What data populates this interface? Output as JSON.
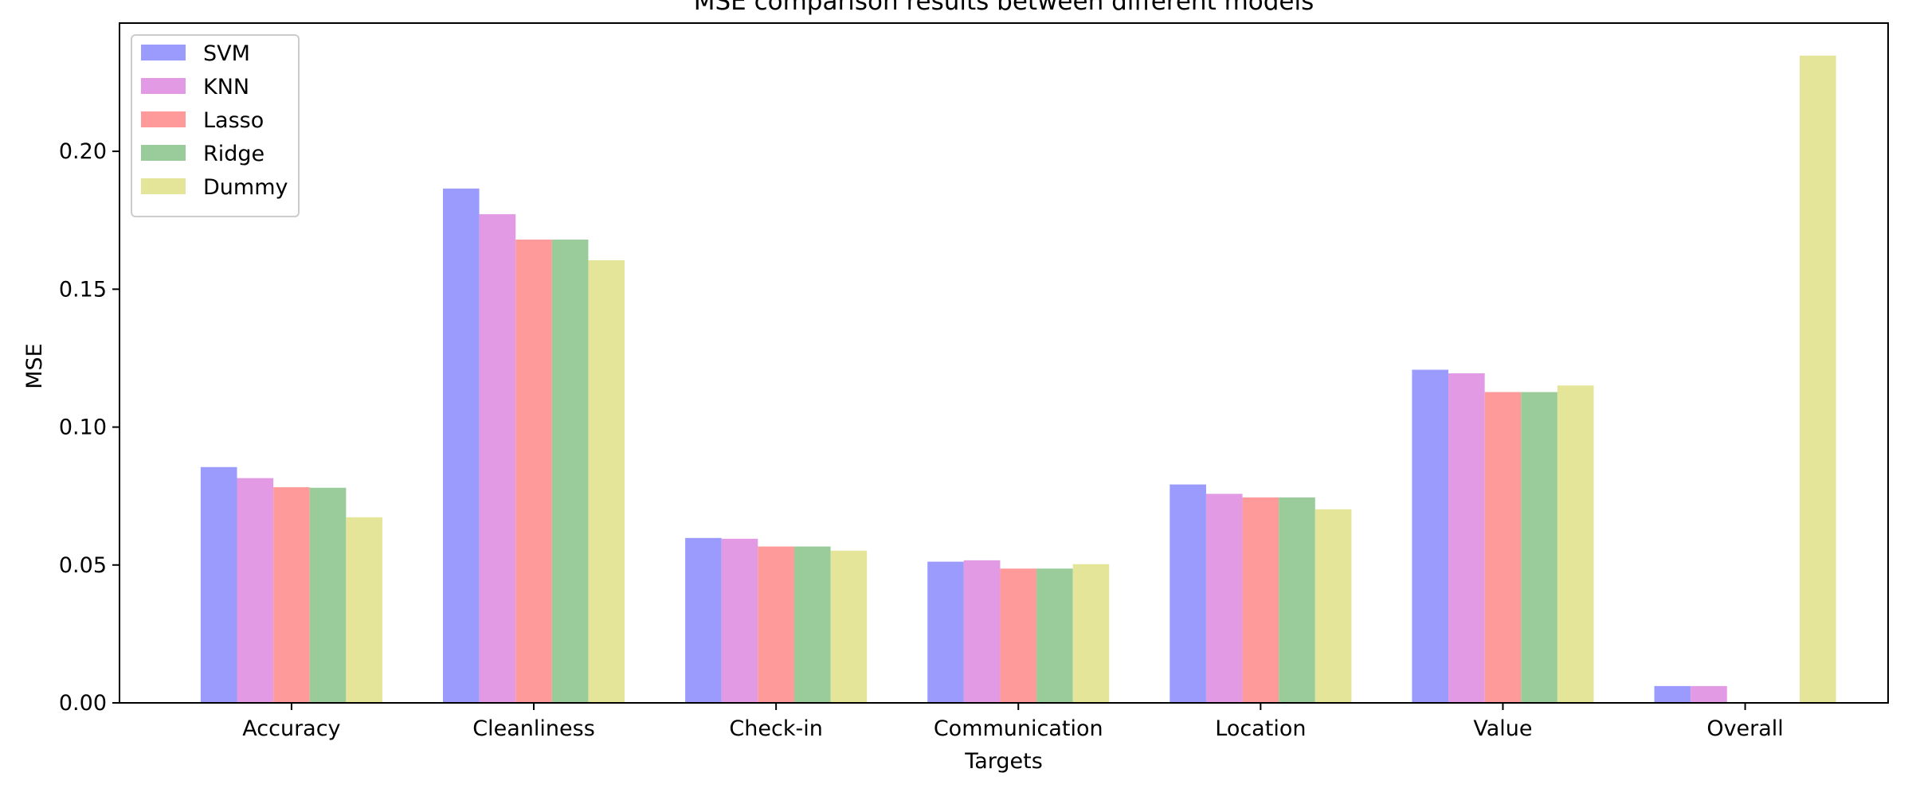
{
  "chart_data": {
    "type": "bar",
    "title": "MSE comparison results between different models",
    "xlabel": "Targets",
    "ylabel": "MSE",
    "categories": [
      "Accuracy",
      "Cleanliness",
      "Check-in",
      "Communication",
      "Location",
      "Value",
      "Overall"
    ],
    "series": [
      {
        "name": "SVM",
        "color": "#9a9bfc",
        "values": [
          0.0855,
          0.1865,
          0.0598,
          0.0512,
          0.0792,
          0.1208,
          0.0061
        ]
      },
      {
        "name": "KNN",
        "color": "#e39ae5",
        "values": [
          0.0815,
          0.1772,
          0.0595,
          0.0517,
          0.0758,
          0.1195,
          0.0061
        ]
      },
      {
        "name": "Lasso",
        "color": "#fe9a9a",
        "values": [
          0.0782,
          0.168,
          0.0567,
          0.0487,
          0.0745,
          0.1127,
          0.0
        ]
      },
      {
        "name": "Ridge",
        "color": "#9acb9a",
        "values": [
          0.078,
          0.168,
          0.0567,
          0.0487,
          0.0745,
          0.1127,
          0.0
        ]
      },
      {
        "name": "Dummy",
        "color": "#e5e59a",
        "values": [
          0.0673,
          0.1605,
          0.0552,
          0.0503,
          0.0702,
          0.1151,
          0.2347
        ]
      }
    ],
    "ylim": [
      0,
      0.2465
    ],
    "yticks": [
      0.0,
      0.05,
      0.1,
      0.15,
      0.2
    ],
    "ytick_labels": [
      "0.00",
      "0.05",
      "0.10",
      "0.15",
      "0.20"
    ],
    "grid": false,
    "legend_position": "top-left"
  }
}
